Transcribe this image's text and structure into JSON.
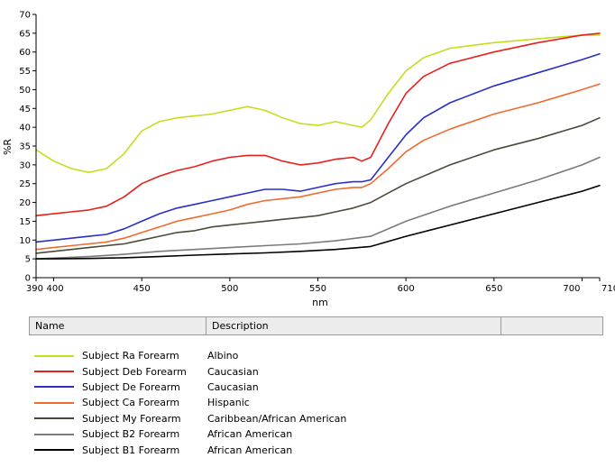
{
  "chart_data": {
    "type": "line",
    "title": "",
    "xlabel": "nm",
    "ylabel": "%R",
    "xlim": [
      390,
      710
    ],
    "ylim": [
      0,
      70
    ],
    "x_ticks": [
      "390",
      "400",
      "450",
      "500",
      "550",
      "600",
      "650",
      "700",
      "710"
    ],
    "y_ticks": [
      "0",
      "5",
      "10",
      "15",
      "20",
      "25",
      "30",
      "35",
      "40",
      "45",
      "50",
      "55",
      "60",
      "65",
      "70"
    ],
    "grid": false,
    "series": [
      {
        "name": "Subject Ra Forearm",
        "color": "#c8dc1e",
        "x": [
          390,
          400,
          410,
          420,
          430,
          440,
          450,
          460,
          470,
          480,
          490,
          500,
          510,
          520,
          530,
          540,
          550,
          560,
          570,
          575,
          580,
          590,
          600,
          610,
          625,
          650,
          675,
          700,
          710
        ],
        "y": [
          34,
          31,
          29,
          28,
          29,
          33,
          39,
          41.5,
          42.5,
          43,
          43.5,
          44.5,
          45.5,
          44.5,
          42.5,
          41,
          40.5,
          41.5,
          40.5,
          40,
          42,
          49,
          55,
          58.5,
          61,
          62.5,
          63.5,
          64.5,
          64.5
        ]
      },
      {
        "name": "Subject Deb Forearm",
        "color": "#e8201c",
        "x": [
          390,
          400,
          410,
          420,
          430,
          440,
          450,
          460,
          470,
          480,
          490,
          500,
          510,
          520,
          530,
          540,
          550,
          560,
          570,
          575,
          580,
          590,
          600,
          610,
          625,
          650,
          675,
          700,
          710
        ],
        "y": [
          16.5,
          17,
          17.5,
          18,
          19,
          21.5,
          25,
          27,
          28.5,
          29.5,
          31,
          32,
          32.5,
          32.5,
          31,
          30,
          30.5,
          31.5,
          32,
          31,
          32,
          41,
          49,
          53.5,
          57,
          60,
          62.5,
          64.5,
          65
        ]
      },
      {
        "name": "Subject De Forearm",
        "color": "#2a2ec8",
        "x": [
          390,
          400,
          410,
          420,
          430,
          440,
          450,
          460,
          470,
          480,
          490,
          500,
          510,
          520,
          530,
          540,
          550,
          560,
          570,
          575,
          580,
          590,
          600,
          610,
          625,
          650,
          675,
          700,
          710
        ],
        "y": [
          9.5,
          10,
          10.5,
          11,
          11.5,
          13,
          15,
          17,
          18.5,
          19.5,
          20.5,
          21.5,
          22.5,
          23.5,
          23.5,
          23,
          24,
          25,
          25.5,
          25.5,
          26,
          32,
          38,
          42.5,
          46.5,
          51,
          54.5,
          58,
          59.5
        ]
      },
      {
        "name": "Subject Ca Forearm",
        "color": "#f06a2c",
        "x": [
          390,
          400,
          410,
          420,
          430,
          440,
          450,
          460,
          470,
          480,
          490,
          500,
          510,
          520,
          530,
          540,
          550,
          560,
          570,
          575,
          580,
          590,
          600,
          610,
          625,
          650,
          675,
          700,
          710
        ],
        "y": [
          7.5,
          8,
          8.5,
          9,
          9.5,
          10.5,
          12,
          13.5,
          15,
          16,
          17,
          18,
          19.5,
          20.5,
          21,
          21.5,
          22.5,
          23.5,
          24,
          24,
          25,
          29,
          33.5,
          36.5,
          39.5,
          43.5,
          46.5,
          50,
          51.5
        ]
      },
      {
        "name": "Subject My Forearm",
        "color": "#4a4a3a",
        "x": [
          390,
          400,
          410,
          420,
          430,
          440,
          450,
          460,
          470,
          480,
          490,
          500,
          510,
          520,
          530,
          540,
          550,
          560,
          570,
          580,
          590,
          600,
          625,
          650,
          675,
          700,
          710
        ],
        "y": [
          6.5,
          7,
          7.5,
          8,
          8.5,
          9,
          10,
          11,
          12,
          12.5,
          13.5,
          14,
          14.5,
          15,
          15.5,
          16,
          16.5,
          17.5,
          18.5,
          20,
          22.5,
          25,
          30,
          34,
          37,
          40.5,
          42.5
        ]
      },
      {
        "name": "Subject B2 Forearm",
        "color": "#7a7a7a",
        "x": [
          390,
          400,
          420,
          440,
          460,
          480,
          500,
          520,
          540,
          560,
          580,
          600,
          625,
          650,
          675,
          700,
          710
        ],
        "y": [
          5,
          5.2,
          5.6,
          6.2,
          7,
          7.5,
          8,
          8.5,
          9,
          9.8,
          11,
          15,
          19,
          22.5,
          26,
          30,
          32
        ]
      },
      {
        "name": "Subject B1 Forearm",
        "color": "#000000",
        "x": [
          390,
          400,
          420,
          440,
          460,
          480,
          500,
          520,
          540,
          560,
          580,
          600,
          625,
          650,
          675,
          700,
          710
        ],
        "y": [
          5,
          5,
          5.1,
          5.3,
          5.6,
          6,
          6.3,
          6.6,
          7,
          7.5,
          8.3,
          11,
          14,
          17,
          20,
          23,
          24.5
        ]
      }
    ]
  },
  "legend": {
    "header_name": "Name",
    "header_desc": "Description",
    "rows": [
      {
        "name": "Subject Ra Forearm",
        "desc": "Albino",
        "color": "#c8dc1e"
      },
      {
        "name": "Subject Deb Forearm",
        "desc": "Caucasian",
        "color": "#e8201c"
      },
      {
        "name": "Subject De Forearm",
        "desc": "Caucasian",
        "color": "#2a2ec8"
      },
      {
        "name": "Subject Ca Forearm",
        "desc": "Hispanic",
        "color": "#f06a2c"
      },
      {
        "name": "Subject My Forearm",
        "desc": "Caribbean/African American",
        "color": "#4a4a3a"
      },
      {
        "name": "Subject B2 Forearm",
        "desc": "African American",
        "color": "#7a7a7a"
      },
      {
        "name": "Subject B1 Forearm",
        "desc": "African American",
        "color": "#000000"
      }
    ]
  }
}
